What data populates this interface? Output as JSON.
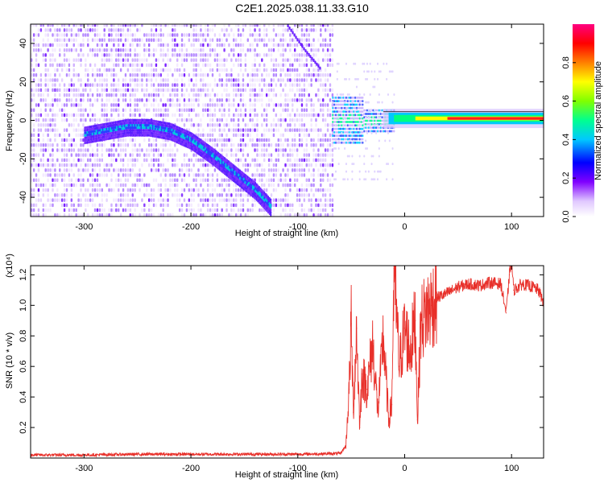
{
  "figure_title": "C2E1.2025.038.11.33.G10",
  "chart_data": [
    {
      "type": "heatmap",
      "panel": "top",
      "xlabel": "Height of straight line (km)",
      "ylabel": "Frequency (Hz)",
      "xlim": [
        -350,
        130
      ],
      "ylim": [
        -50,
        50
      ],
      "x_ticks": [
        -300,
        -200,
        -100,
        0,
        100
      ],
      "y_ticks": [
        -40,
        -20,
        0,
        20,
        40
      ],
      "colorbar": {
        "label": "Normalized spectral amplitude",
        "range": [
          0.0,
          1.0
        ],
        "ticks": [
          "0.0",
          "0.2",
          "0.4",
          "0.6",
          "0.8"
        ],
        "colors": [
          "#ffffff",
          "#8000ff",
          "#0000ff",
          "#00c8ff",
          "#00ff80",
          "#80ff00",
          "#ffff00",
          "#ff8000",
          "#ff0000",
          "#ff0080"
        ]
      },
      "noise_region_x": [
        -350,
        -68
      ],
      "signal_track": [
        {
          "x": -300,
          "f": -7
        },
        {
          "x": -280,
          "f": -5
        },
        {
          "x": -260,
          "f": -3
        },
        {
          "x": -240,
          "f": -3
        },
        {
          "x": -220,
          "f": -5
        },
        {
          "x": -200,
          "f": -10
        },
        {
          "x": -180,
          "f": -18
        },
        {
          "x": -160,
          "f": -27
        },
        {
          "x": -140,
          "f": -36
        },
        {
          "x": -125,
          "f": -45
        }
      ],
      "aliased_track": [
        {
          "x": -110,
          "f": 50
        },
        {
          "x": -95,
          "f": 38
        },
        {
          "x": -80,
          "f": 28
        }
      ],
      "tone": {
        "x_start": -68,
        "x_end": 130,
        "f": 1,
        "peak_x_range": [
          40,
          130
        ]
      }
    },
    {
      "type": "line",
      "panel": "bottom",
      "xlabel": "Height of straight line (km)",
      "ylabel": "SNR (10 * v/v)",
      "y_multiplier": "(x10⁴)",
      "xlim": [
        -350,
        130
      ],
      "ylim": [
        0,
        1.26
      ],
      "x_ticks": [
        -300,
        -200,
        -100,
        0,
        100
      ],
      "y_ticks": [
        "0.2",
        "0.4",
        "0.6",
        "0.8",
        "1.0",
        "1.2"
      ],
      "series": [
        {
          "color": "#e8302a",
          "x": [
            -350,
            -300,
            -250,
            -200,
            -150,
            -100,
            -60,
            -55,
            -52,
            -50,
            -48,
            -45,
            -42,
            -40,
            -35,
            -30,
            -25,
            -20,
            -15,
            -12,
            -10,
            -5,
            0,
            5,
            10,
            12,
            15,
            20,
            25,
            30,
            40,
            50,
            60,
            70,
            80,
            90,
            95,
            98,
            100,
            102,
            110,
            120,
            125,
            130
          ],
          "y": [
            0.02,
            0.02,
            0.025,
            0.025,
            0.025,
            0.025,
            0.03,
            0.08,
            0.45,
            0.88,
            0.3,
            0.85,
            0.2,
            0.55,
            0.45,
            0.75,
            0.3,
            0.8,
            0.25,
            0.35,
            1.24,
            0.6,
            0.85,
            0.7,
            0.9,
            0.25,
            0.88,
            0.95,
            1.0,
            1.05,
            1.08,
            1.12,
            1.14,
            1.13,
            1.15,
            1.14,
            0.95,
            1.2,
            1.3,
            1.1,
            1.14,
            1.12,
            1.1,
            1.02
          ]
        }
      ]
    }
  ]
}
